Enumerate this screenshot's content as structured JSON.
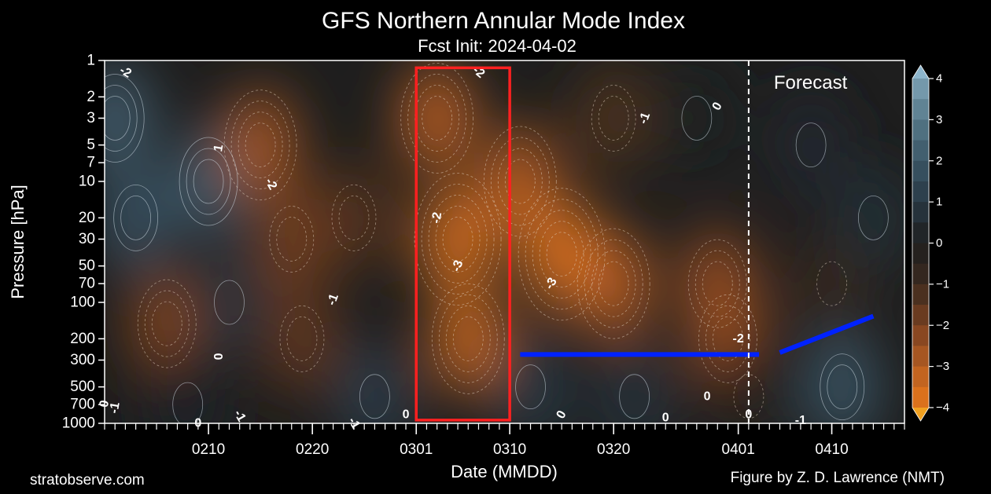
{
  "chart_data": {
    "type": "heatmap",
    "title": "GFS Northern Annular Mode Index",
    "subtitle": "Fcst Init: 2024-04-02",
    "xlabel": "Date (MMDD)",
    "ylabel": "Pressure [hPa]",
    "y_scale": "log",
    "y_inverted": true,
    "ylim": [
      1000,
      1
    ],
    "xlim": [
      "2024-01-31",
      "2024-04-17"
    ],
    "x_ticks": [
      {
        "date": "2024-02-10",
        "label": "0210"
      },
      {
        "date": "2024-02-20",
        "label": "0220"
      },
      {
        "date": "2024-03-01",
        "label": "0301"
      },
      {
        "date": "2024-03-10",
        "label": "0310"
      },
      {
        "date": "2024-03-20",
        "label": "0320"
      },
      {
        "date": "2024-04-01",
        "label": "0401"
      },
      {
        "date": "2024-04-10",
        "label": "0410"
      }
    ],
    "y_ticks": [
      1,
      2,
      3,
      5,
      7,
      10,
      20,
      30,
      50,
      70,
      100,
      200,
      300,
      500,
      700,
      1000
    ],
    "colorbar": {
      "min": -4,
      "max": 4,
      "ticks": [
        4,
        3,
        2,
        1,
        0,
        -1,
        -2,
        -3,
        -4
      ],
      "colors": [
        "#e8781a",
        "#b55d22",
        "#7a4020",
        "#3b2a1f",
        "#1e1e1e",
        "#283845",
        "#3b5666",
        "#567889",
        "#7ea2b6"
      ],
      "extend": "both"
    },
    "forecast_line": {
      "date": "2024-04-02",
      "label": "Forecast"
    },
    "fields": [
      {
        "date": "2024-02-01",
        "level": 3,
        "value": 2.2
      },
      {
        "date": "2024-02-03",
        "level": 20,
        "value": 1.8
      },
      {
        "date": "2024-02-06",
        "level": 150,
        "value": -2.1
      },
      {
        "date": "2024-02-08",
        "level": 700,
        "value": 0.2
      },
      {
        "date": "2024-02-10",
        "level": 10,
        "value": 2.1
      },
      {
        "date": "2024-02-12",
        "level": 100,
        "value": 0.8
      },
      {
        "date": "2024-02-15",
        "level": 5,
        "value": -2.7
      },
      {
        "date": "2024-02-18",
        "level": 30,
        "value": -1.9
      },
      {
        "date": "2024-02-19",
        "level": 200,
        "value": -1.6
      },
      {
        "date": "2024-02-24",
        "level": 20,
        "value": -1.4
      },
      {
        "date": "2024-02-26",
        "level": 600,
        "value": 1.1
      },
      {
        "date": "2024-03-03",
        "level": 3,
        "value": -3.0
      },
      {
        "date": "2024-03-05",
        "level": 30,
        "value": -3.6
      },
      {
        "date": "2024-03-06",
        "level": 200,
        "value": -3.2
      },
      {
        "date": "2024-03-11",
        "level": 10,
        "value": -3.0
      },
      {
        "date": "2024-03-15",
        "level": 40,
        "value": -3.8
      },
      {
        "date": "2024-03-20",
        "level": 70,
        "value": -3.0
      },
      {
        "date": "2024-03-20",
        "level": 3,
        "value": -1.3
      },
      {
        "date": "2024-03-12",
        "level": 500,
        "value": 1.0
      },
      {
        "date": "2024-03-22",
        "level": 600,
        "value": 0.8
      },
      {
        "date": "2024-03-28",
        "level": 3,
        "value": 0.1
      },
      {
        "date": "2024-03-30",
        "level": 70,
        "value": -2.4
      },
      {
        "date": "2024-03-31",
        "level": 200,
        "value": -2.6
      },
      {
        "date": "2024-04-02",
        "level": 600,
        "value": -0.3
      },
      {
        "date": "2024-04-08",
        "level": 5,
        "value": 0.4
      },
      {
        "date": "2024-04-10",
        "level": 70,
        "value": -0.8
      },
      {
        "date": "2024-04-11",
        "level": 500,
        "value": 1.9
      },
      {
        "date": "2024-04-14",
        "level": 20,
        "value": 0.6
      }
    ],
    "contour_labels": [
      {
        "text": "-2",
        "date": "2024-02-02",
        "level": 1.25,
        "rotate": 30
      },
      {
        "text": "1",
        "date": "2024-02-11",
        "level": 5.3,
        "rotate": -80
      },
      {
        "text": "-2",
        "date": "2024-02-16",
        "level": 10.5,
        "rotate": 60
      },
      {
        "text": "-1",
        "date": "2024-02-22",
        "level": 95,
        "rotate": -70
      },
      {
        "text": "0",
        "date": "2024-02-11",
        "level": 280,
        "rotate": -90
      },
      {
        "text": "0",
        "date": "2024-01-31",
        "level": 690,
        "rotate": -80
      },
      {
        "text": "-1",
        "date": "2024-02-01",
        "level": 745,
        "rotate": -80
      },
      {
        "text": "0",
        "date": "2024-02-09",
        "level": 1000,
        "rotate": 0
      },
      {
        "text": "-1",
        "date": "2024-02-13",
        "level": 870,
        "rotate": 60
      },
      {
        "text": "-1",
        "date": "2024-02-24",
        "level": 1000,
        "rotate": 60
      },
      {
        "text": "0",
        "date": "2024-02-29",
        "level": 850,
        "rotate": 0
      },
      {
        "text": "-2",
        "date": "2024-03-07",
        "level": 1.25,
        "rotate": 40
      },
      {
        "text": "-2",
        "date": "2024-03-03",
        "level": 20,
        "rotate": -80
      },
      {
        "text": "-3",
        "date": "2024-03-05",
        "level": 50,
        "rotate": -70
      },
      {
        "text": "-3",
        "date": "2024-03-14",
        "level": 70,
        "rotate": -60
      },
      {
        "text": "-1",
        "date": "2024-03-23",
        "level": 3,
        "rotate": -70
      },
      {
        "text": "0",
        "date": "2024-03-30",
        "level": 2.4,
        "rotate": -60
      },
      {
        "text": "-2",
        "date": "2024-04-01",
        "level": 200,
        "rotate": 0
      },
      {
        "text": "0",
        "date": "2024-03-29",
        "level": 600,
        "rotate": 0
      },
      {
        "text": "0",
        "date": "2024-03-15",
        "level": 850,
        "rotate": -60
      },
      {
        "text": "0",
        "date": "2024-03-25",
        "level": 900,
        "rotate": 0
      },
      {
        "text": "0",
        "date": "2024-04-02",
        "level": 850,
        "rotate": 0
      },
      {
        "text": "-1",
        "date": "2024-04-07",
        "level": 950,
        "rotate": 0
      }
    ],
    "annotations": [
      {
        "type": "rectangle",
        "color": "#ff2020",
        "x0": "2024-03-01",
        "x1": "2024-03-10",
        "y0": 1.15,
        "y1": 940
      },
      {
        "type": "line",
        "color": "#0022ff",
        "points": [
          [
            "2024-03-11",
            270
          ],
          [
            "2024-04-03",
            270
          ]
        ]
      },
      {
        "type": "line",
        "color": "#0022ff",
        "points": [
          [
            "2024-04-05",
            260
          ],
          [
            "2024-04-14",
            130
          ]
        ]
      }
    ]
  },
  "footer": {
    "left": "stratobserve.com",
    "right": "Figure by Z. D. Lawrence (NMT)"
  }
}
